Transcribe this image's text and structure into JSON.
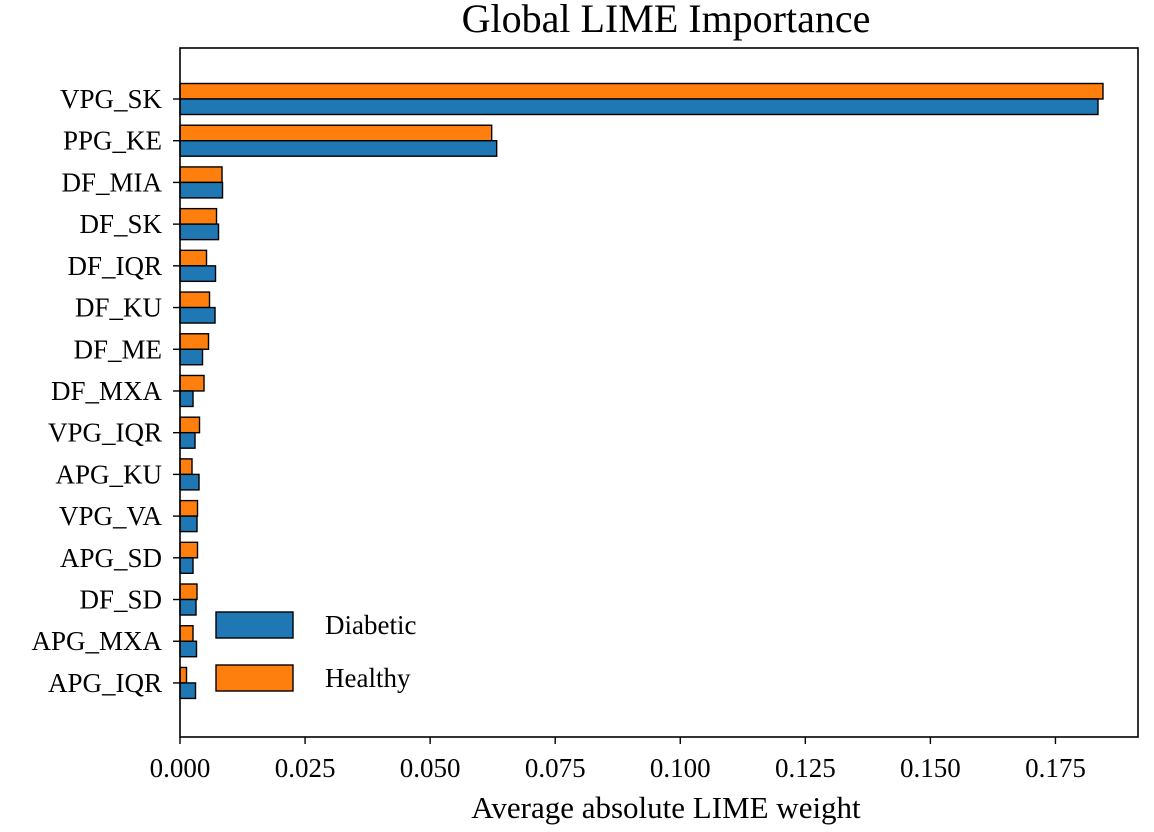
{
  "colors": {
    "diabetic": "#1f77b4",
    "healthy": "#ff7f0e",
    "axis": "#000000",
    "background": "#ffffff"
  },
  "chart_data": {
    "type": "bar",
    "orientation": "horizontal",
    "title": "Global LIME Importance",
    "xlabel": "Average absolute LIME weight",
    "ylabel": "",
    "xlim": [
      0.0,
      0.1915
    ],
    "xticks": [
      0.0,
      0.025,
      0.05,
      0.075,
      0.1,
      0.125,
      0.15,
      0.175
    ],
    "xtick_labels": [
      "0.000",
      "0.025",
      "0.050",
      "0.075",
      "0.100",
      "0.125",
      "0.150",
      "0.175"
    ],
    "grid": false,
    "legend_position": "lower-left",
    "categories": [
      "VPG_SK",
      "PPG_KE",
      "DF_MIA",
      "DF_SK",
      "DF_IQR",
      "DF_KU",
      "DF_ME",
      "DF_MXA",
      "VPG_IQR",
      "APG_KU",
      "VPG_VA",
      "APG_SD",
      "DF_SD",
      "APG_MXA",
      "APG_IQR"
    ],
    "series": [
      {
        "name": "Diabetic",
        "color": "#1f77b4",
        "values": [
          0.1835,
          0.0633,
          0.0085,
          0.0077,
          0.0071,
          0.007,
          0.0045,
          0.0026,
          0.003,
          0.0038,
          0.0034,
          0.0026,
          0.0032,
          0.0033,
          0.0031
        ]
      },
      {
        "name": "Healthy",
        "color": "#ff7f0e",
        "values": [
          0.1845,
          0.0623,
          0.0084,
          0.0073,
          0.0053,
          0.0059,
          0.0057,
          0.0048,
          0.0039,
          0.0024,
          0.0035,
          0.0035,
          0.0034,
          0.0026,
          0.0013
        ]
      }
    ]
  }
}
